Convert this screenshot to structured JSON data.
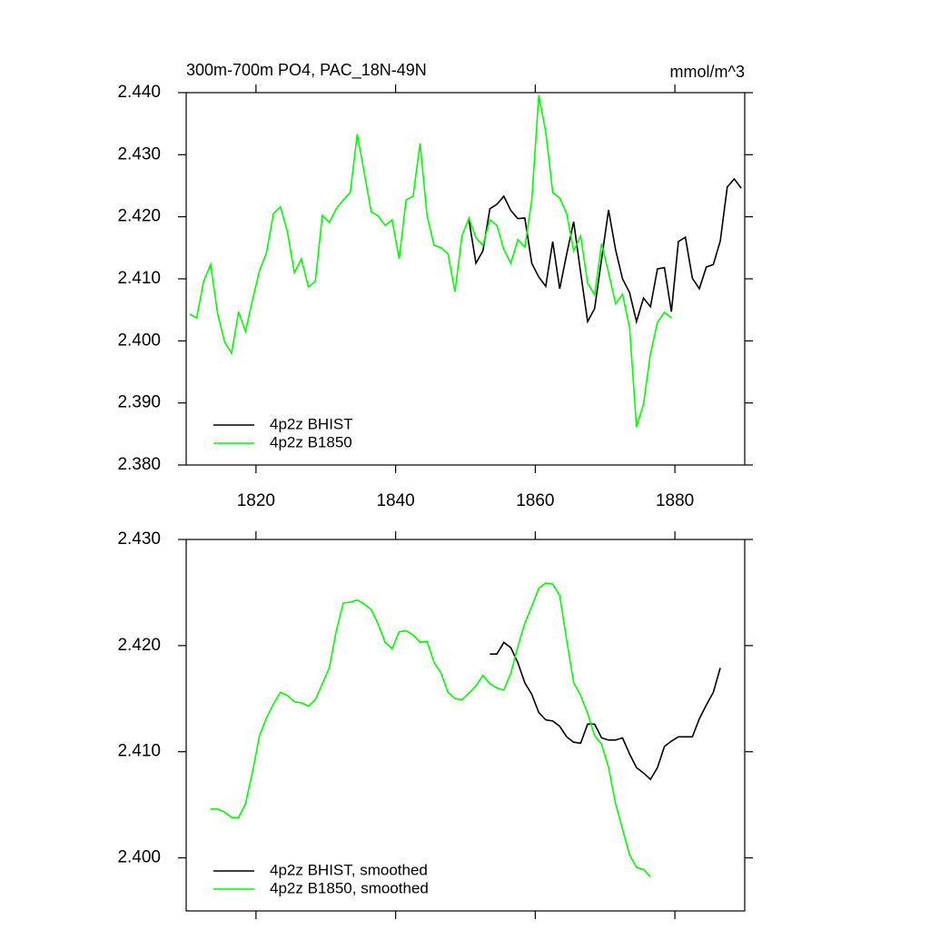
{
  "chart_data": [
    {
      "type": "line",
      "title": "300m-700m PO4, PAC_18N-49N",
      "units": "mmol/m^3",
      "xlim": [
        1810,
        1890
      ],
      "ylim": [
        2.38,
        2.44
      ],
      "xticks": [
        1820,
        1840,
        1860,
        1880
      ],
      "yticks": [
        {
          "value": 2.38,
          "label": "2.380"
        },
        {
          "value": 2.39,
          "label": "2.390"
        },
        {
          "value": 2.4,
          "label": "2.400"
        },
        {
          "value": 2.41,
          "label": "2.410"
        },
        {
          "value": 2.42,
          "label": "2.420"
        },
        {
          "value": 2.43,
          "label": "2.430"
        },
        {
          "value": 2.44,
          "label": "2.440"
        }
      ],
      "xtick_labels": true,
      "legend": "lower left",
      "x": [
        1810.5,
        1811.5,
        1812.5,
        1813.5,
        1814.5,
        1815.5,
        1816.5,
        1817.5,
        1818.5,
        1819.5,
        1820.5,
        1821.5,
        1822.5,
        1823.5,
        1824.5,
        1825.5,
        1826.5,
        1827.5,
        1828.5,
        1829.5,
        1830.5,
        1831.5,
        1832.5,
        1833.5,
        1834.5,
        1835.5,
        1836.5,
        1837.5,
        1838.5,
        1839.5,
        1840.5,
        1841.5,
        1842.5,
        1843.5,
        1844.5,
        1845.5,
        1846.5,
        1847.5,
        1848.5,
        1849.5,
        1850.5,
        1851.5,
        1852.5,
        1853.5,
        1854.5,
        1855.5,
        1856.5,
        1857.5,
        1858.5,
        1859.5,
        1860.5,
        1861.5,
        1862.5,
        1863.5,
        1864.5,
        1865.5,
        1866.5,
        1867.5,
        1868.5,
        1869.5,
        1870.5,
        1871.5,
        1872.5,
        1873.5,
        1874.5,
        1875.5,
        1876.5,
        1877.5,
        1878.5,
        1879.5,
        1880.5,
        1881.5,
        1882.5,
        1883.5,
        1884.5,
        1885.5,
        1886.5,
        1887.5,
        1888.5,
        1889.5
      ],
      "series": [
        {
          "name": "4p2z BHIST",
          "color": "#000000",
          "values": [
            null,
            null,
            null,
            null,
            null,
            null,
            null,
            null,
            null,
            null,
            null,
            null,
            null,
            null,
            null,
            null,
            null,
            null,
            null,
            null,
            null,
            null,
            null,
            null,
            null,
            null,
            null,
            null,
            null,
            null,
            null,
            null,
            null,
            null,
            null,
            null,
            null,
            null,
            null,
            null,
            2.4195,
            2.4125,
            2.4145,
            2.4213,
            2.422,
            2.4233,
            2.421,
            2.4197,
            2.4198,
            2.4125,
            2.4103,
            2.4088,
            2.416,
            2.4084,
            2.414,
            2.4192,
            2.411,
            2.4031,
            2.4052,
            2.4132,
            2.4211,
            2.4147,
            2.41,
            2.4078,
            2.4031,
            2.4069,
            2.4055,
            2.4116,
            2.4118,
            2.4047,
            2.416,
            2.4167,
            2.4101,
            2.4084,
            2.4119,
            2.4123,
            2.4161,
            2.4248,
            2.4261,
            2.4246
          ]
        },
        {
          "name": "4p2z B1850",
          "color": "#00ff00",
          "values": [
            2.4043,
            2.4037,
            2.4096,
            2.4123,
            2.4044,
            2.3998,
            2.398,
            2.4047,
            2.4015,
            2.4066,
            2.4113,
            2.4142,
            2.4205,
            2.4216,
            2.4176,
            2.411,
            2.4132,
            2.4087,
            2.4096,
            2.4202,
            2.4191,
            2.4213,
            2.4227,
            2.4239,
            2.4333,
            2.4271,
            2.4208,
            2.4201,
            2.4186,
            2.4195,
            2.4132,
            2.4227,
            2.4233,
            2.4318,
            2.4202,
            2.4154,
            2.415,
            2.414,
            2.4079,
            2.4169,
            2.4198,
            2.4166,
            2.4154,
            2.4195,
            2.4186,
            2.4147,
            2.4125,
            2.4163,
            2.4151,
            2.4227,
            2.4396,
            2.4337,
            2.4239,
            2.423,
            2.4205,
            2.4145,
            2.4169,
            2.4093,
            2.4074,
            2.4157,
            2.411,
            2.406,
            2.4075,
            2.4022,
            2.3861,
            2.3898,
            2.3979,
            2.403,
            2.4046,
            2.4037,
            null,
            null,
            null,
            null,
            null,
            null,
            null,
            null,
            null,
            null
          ]
        }
      ]
    },
    {
      "type": "line",
      "xlim": [
        1810,
        1890
      ],
      "ylim": [
        2.395,
        2.43
      ],
      "xticks": [
        1820,
        1840,
        1860,
        1880
      ],
      "yticks": [
        {
          "value": 2.4,
          "label": "2.400"
        },
        {
          "value": 2.41,
          "label": "2.410"
        },
        {
          "value": 2.42,
          "label": "2.420"
        },
        {
          "value": 2.43,
          "label": "2.430"
        }
      ],
      "xtick_labels": false,
      "legend": "lower left",
      "x": [
        1813.5,
        1814.5,
        1815.5,
        1816.5,
        1817.5,
        1818.5,
        1819.5,
        1820.5,
        1821.5,
        1822.5,
        1823.5,
        1824.5,
        1825.5,
        1826.5,
        1827.5,
        1828.5,
        1829.5,
        1830.5,
        1831.5,
        1832.5,
        1833.5,
        1834.5,
        1835.5,
        1836.5,
        1837.5,
        1838.5,
        1839.5,
        1840.5,
        1841.5,
        1842.5,
        1843.5,
        1844.5,
        1845.5,
        1846.5,
        1847.5,
        1848.5,
        1849.5,
        1850.5,
        1851.5,
        1852.5,
        1853.5,
        1854.5,
        1855.5,
        1856.5,
        1857.5,
        1858.5,
        1859.5,
        1860.5,
        1861.5,
        1862.5,
        1863.5,
        1864.5,
        1865.5,
        1866.5,
        1867.5,
        1868.5,
        1869.5,
        1870.5,
        1871.5,
        1872.5,
        1873.5,
        1874.5,
        1875.5,
        1876.5,
        1877.5,
        1878.5,
        1879.5,
        1880.5,
        1881.5,
        1882.5,
        1883.5,
        1884.5,
        1885.5,
        1886.5
      ],
      "series": [
        {
          "name": "4p2z BHIST, smoothed",
          "color": "#000000",
          "values": [
            null,
            null,
            null,
            null,
            null,
            null,
            null,
            null,
            null,
            null,
            null,
            null,
            null,
            null,
            null,
            null,
            null,
            null,
            null,
            null,
            null,
            null,
            null,
            null,
            null,
            null,
            null,
            null,
            null,
            null,
            null,
            null,
            null,
            null,
            null,
            null,
            null,
            null,
            null,
            null,
            2.4192,
            2.4192,
            2.4203,
            2.4198,
            2.4184,
            2.4165,
            2.4154,
            2.4137,
            2.413,
            2.4129,
            2.4124,
            2.4114,
            2.4109,
            2.4108,
            2.4126,
            2.4126,
            2.4113,
            2.4111,
            2.4111,
            2.4113,
            2.4098,
            2.4085,
            2.408,
            2.4074,
            2.4085,
            2.4105,
            2.411,
            2.4114,
            2.4114,
            2.4114,
            2.4131,
            2.4144,
            2.4156,
            2.4179
          ]
        },
        {
          "name": "4p2z B1850, smoothed",
          "color": "#00ff00",
          "values": [
            2.4046,
            2.4046,
            2.4043,
            2.4038,
            2.4038,
            2.4051,
            2.4081,
            2.4115,
            2.4132,
            2.4145,
            2.4156,
            2.4153,
            2.4147,
            2.4146,
            2.4143,
            2.4149,
            2.4164,
            2.4179,
            2.4214,
            2.424,
            2.4241,
            2.4243,
            2.4239,
            2.4234,
            2.422,
            2.4203,
            2.4197,
            2.4213,
            2.4214,
            2.421,
            2.4203,
            2.4204,
            2.4184,
            2.4174,
            2.4156,
            2.415,
            2.4149,
            2.4155,
            2.4162,
            2.4172,
            2.4164,
            2.416,
            2.4158,
            2.4174,
            2.4199,
            2.4221,
            2.4237,
            2.4254,
            2.4259,
            2.4258,
            2.4247,
            2.4205,
            2.4165,
            2.4153,
            2.4136,
            2.4115,
            2.4107,
            2.4085,
            2.4051,
            2.4027,
            2.4003,
            2.3991,
            2.3989,
            2.3982,
            null,
            null,
            null,
            null,
            null,
            null,
            null,
            null,
            null,
            null
          ]
        }
      ]
    }
  ]
}
